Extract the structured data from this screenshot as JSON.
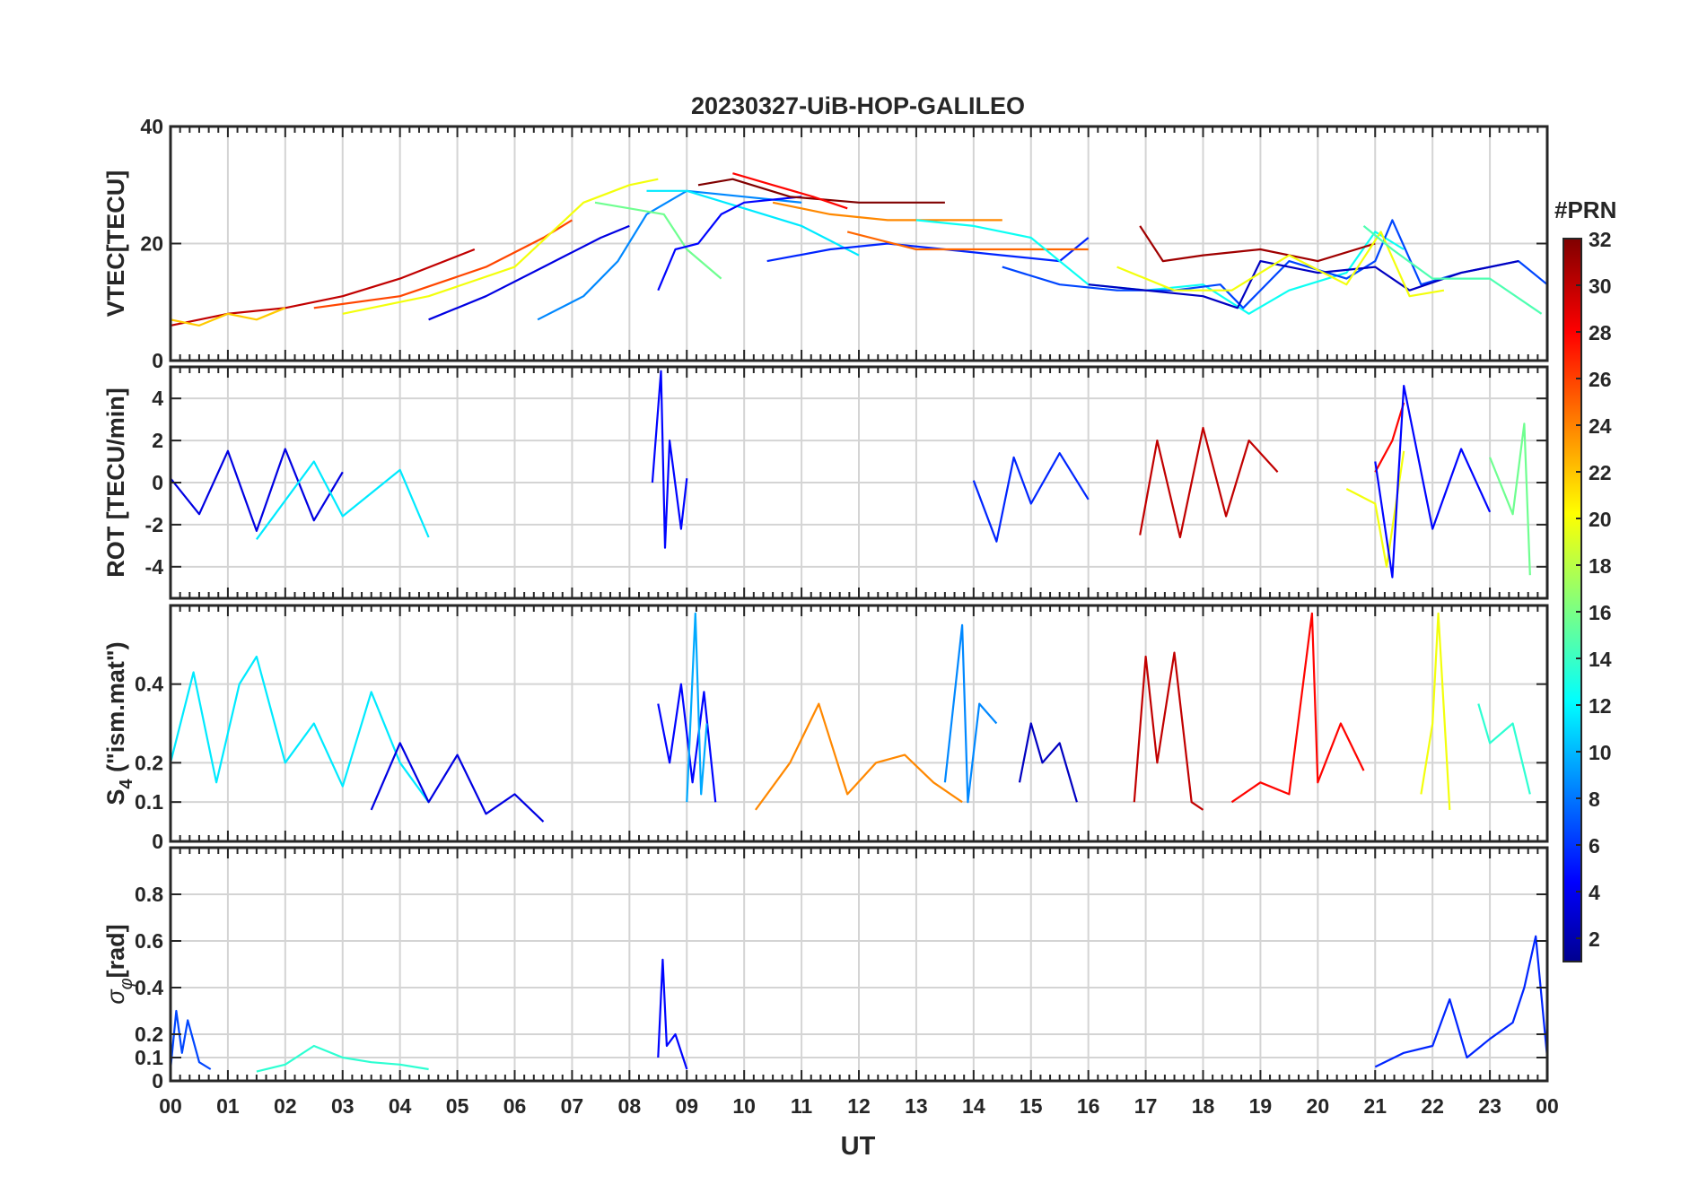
{
  "chart_data": {
    "type": "line",
    "title": "20230327-UiB-HOP-GALILEO",
    "xlabel": "UT",
    "x_range_hours": [
      0,
      24
    ],
    "x_ticks": [
      "00",
      "01",
      "02",
      "03",
      "04",
      "05",
      "06",
      "07",
      "08",
      "09",
      "10",
      "11",
      "12",
      "13",
      "14",
      "15",
      "16",
      "17",
      "18",
      "19",
      "20",
      "21",
      "22",
      "23",
      "00"
    ],
    "colorbar": {
      "title": "#PRN",
      "range": [
        1,
        32
      ],
      "ticks": [
        "2",
        "4",
        "6",
        "8",
        "10",
        "12",
        "14",
        "16",
        "18",
        "20",
        "22",
        "24",
        "26",
        "28",
        "30",
        "32"
      ],
      "colormap": "jet"
    },
    "panels": [
      {
        "id": "vtec",
        "ylabel": "VTEC[TECU]",
        "ylim": [
          0,
          40
        ],
        "y_ticks": [
          "0",
          "20",
          "40"
        ],
        "y_tick_values": [
          0,
          20,
          40
        ],
        "series": [
          {
            "prn": 30,
            "x": [
              0.0,
              1.0,
              2.0,
              3.0,
              4.0,
              5.3
            ],
            "y": [
              6,
              8,
              9,
              11,
              14,
              19
            ]
          },
          {
            "prn": 26,
            "x": [
              2.5,
              4.0,
              5.5,
              6.5,
              7.0
            ],
            "y": [
              9,
              11,
              16,
              21,
              24
            ]
          },
          {
            "prn": 20,
            "x": [
              3.0,
              4.5,
              6.0,
              7.2,
              8.0,
              8.5
            ],
            "y": [
              8,
              11,
              16,
              27,
              30,
              31
            ]
          },
          {
            "prn": 22,
            "x": [
              0.0,
              0.5,
              1.0,
              1.5,
              2.0
            ],
            "y": [
              7,
              6,
              8,
              7,
              9
            ]
          },
          {
            "prn": 4,
            "x": [
              4.5,
              5.5,
              6.5,
              7.5,
              8.0
            ],
            "y": [
              7,
              11,
              16,
              21,
              23
            ]
          },
          {
            "prn": 9,
            "x": [
              6.4,
              7.2,
              7.8,
              8.3,
              9.0,
              10.0,
              11.0
            ],
            "y": [
              7,
              11,
              17,
              25,
              29,
              28,
              27
            ]
          },
          {
            "prn": 12,
            "x": [
              8.3,
              9.0,
              10.0,
              11.0,
              12.0
            ],
            "y": [
              29,
              29,
              26,
              23,
              18
            ]
          },
          {
            "prn": 16,
            "x": [
              7.4,
              8.0,
              8.6,
              9.0,
              9.6
            ],
            "y": [
              27,
              26,
              25,
              19,
              14
            ]
          },
          {
            "prn": 5,
            "x": [
              8.5,
              8.8,
              9.2,
              9.6,
              10.0,
              11.0
            ],
            "y": [
              12,
              19,
              20,
              25,
              27,
              28
            ]
          },
          {
            "prn": 32,
            "x": [
              9.2,
              9.8,
              10.8,
              12.0,
              13.5
            ],
            "y": [
              30,
              31,
              28,
              27,
              27
            ]
          },
          {
            "prn": 28,
            "x": [
              9.8,
              10.5,
              11.2,
              11.8
            ],
            "y": [
              32,
              30,
              28,
              26
            ]
          },
          {
            "prn": 24,
            "x": [
              10.5,
              11.5,
              12.5,
              13.5,
              14.5
            ],
            "y": [
              27,
              25,
              24,
              24,
              24
            ]
          },
          {
            "prn": 6,
            "x": [
              10.4,
              11.5,
              12.5,
              13.5,
              14.5,
              15.5,
              16.0
            ],
            "y": [
              17,
              19,
              20,
              19,
              18,
              17,
              21
            ]
          },
          {
            "prn": 25,
            "x": [
              11.8,
              13.0,
              14.0,
              15.0,
              16.0
            ],
            "y": [
              22,
              19,
              19,
              19,
              19
            ]
          },
          {
            "prn": 13,
            "x": [
              13.0,
              14.0,
              15.0,
              16.0,
              17.0,
              18.0,
              18.8,
              19.5,
              20.5,
              21.0,
              21.5
            ],
            "y": [
              24,
              23,
              21,
              13,
              12,
              13,
              8,
              12,
              15,
              22,
              19
            ]
          },
          {
            "prn": 7,
            "x": [
              14.5,
              15.5,
              16.5,
              17.5,
              18.3,
              18.7,
              19.5,
              20.5,
              21.0,
              21.3,
              21.8,
              22.5,
              23.5,
              24.0
            ],
            "y": [
              16,
              13,
              12,
              12,
              13,
              9,
              17,
              14,
              17,
              24,
              13,
              15,
              17,
              13
            ]
          },
          {
            "prn": 3,
            "x": [
              16.0,
              17.0,
              18.0,
              18.6,
              19.0,
              20.0,
              21.0,
              21.6,
              22.5,
              23.5
            ],
            "y": [
              13,
              12,
              11,
              9,
              17,
              15,
              16,
              12,
              15,
              17
            ]
          },
          {
            "prn": 31,
            "x": [
              16.9,
              17.3,
              18.0,
              19.0,
              20.0,
              21.0
            ],
            "y": [
              23,
              17,
              18,
              19,
              17,
              20
            ]
          },
          {
            "prn": 20,
            "x": [
              16.5,
              17.5,
              18.5,
              19.5,
              20.5,
              21.1,
              21.6,
              22.2
            ],
            "y": [
              16,
              12,
              12,
              18,
              13,
              22,
              11,
              12
            ]
          },
          {
            "prn": 15,
            "x": [
              20.8,
              21.3,
              22.0,
              23.0,
              23.9
            ],
            "y": [
              23,
              19,
              14,
              14,
              8
            ]
          }
        ]
      },
      {
        "id": "rot",
        "ylabel": "ROT [TECU/min]",
        "ylim": [
          -5.5,
          5.5
        ],
        "y_ticks": [
          "-4",
          "-2",
          "0",
          "2",
          "4"
        ],
        "y_tick_values": [
          -4,
          -2,
          0,
          2,
          4
        ],
        "series": [
          {
            "prn": 4,
            "x": [
              0.0,
              0.5,
              1.0,
              1.5,
              2.0,
              2.5,
              3.0
            ],
            "y": [
              0.2,
              -1.5,
              1.5,
              -2.3,
              1.6,
              -1.8,
              0.5
            ]
          },
          {
            "prn": 12,
            "x": [
              1.5,
              2.5,
              3.0,
              4.0,
              4.5
            ],
            "y": [
              -2.7,
              1.0,
              -1.6,
              0.6,
              -2.6
            ]
          },
          {
            "prn": 5,
            "x": [
              8.4,
              8.55,
              8.62,
              8.7,
              8.9,
              9.0
            ],
            "y": [
              0.0,
              5.3,
              -3.1,
              2.0,
              -2.2,
              0.2
            ]
          },
          {
            "prn": 6,
            "x": [
              14.0,
              14.4,
              14.7,
              15.0,
              15.5,
              16.0
            ],
            "y": [
              0.1,
              -2.8,
              1.2,
              -1.0,
              1.4,
              -0.8
            ]
          },
          {
            "prn": 30,
            "x": [
              16.9,
              17.2,
              17.6,
              18.0,
              18.4,
              18.8,
              19.3
            ],
            "y": [
              -2.5,
              2.0,
              -2.6,
              2.6,
              -1.6,
              2.0,
              0.5
            ]
          },
          {
            "prn": 28,
            "x": [
              21.0,
              21.3,
              21.5
            ],
            "y": [
              0.5,
              2.0,
              3.8
            ]
          },
          {
            "prn": 20,
            "x": [
              20.5,
              21.0,
              21.2,
              21.5
            ],
            "y": [
              -0.3,
              -1.0,
              -4.0,
              1.5
            ]
          },
          {
            "prn": 5,
            "x": [
              21.0,
              21.3,
              21.5,
              22.0,
              22.5,
              23.0
            ],
            "y": [
              1.0,
              -4.5,
              4.6,
              -2.2,
              1.6,
              -1.4
            ]
          },
          {
            "prn": 16,
            "x": [
              23.0,
              23.4,
              23.6,
              23.7
            ],
            "y": [
              1.2,
              -1.5,
              2.8,
              -4.4
            ]
          }
        ]
      },
      {
        "id": "s4",
        "ylabel_main": "S",
        "ylabel_sub": "4",
        "ylabel_rest": " (\"ism.mat\")",
        "ylim": [
          0,
          0.6
        ],
        "y_ticks": [
          "0",
          "0.1",
          "0.2",
          "0.4"
        ],
        "y_tick_values": [
          0,
          0.1,
          0.2,
          0.4
        ],
        "series": [
          {
            "prn": 12,
            "x": [
              0.0,
              0.4,
              0.8,
              1.2,
              1.5,
              2.0,
              2.5,
              3.0,
              3.5,
              4.0,
              4.5
            ],
            "y": [
              0.2,
              0.43,
              0.15,
              0.4,
              0.47,
              0.2,
              0.3,
              0.14,
              0.38,
              0.2,
              0.1
            ]
          },
          {
            "prn": 4,
            "x": [
              3.5,
              4.0,
              4.5,
              5.0,
              5.5,
              6.0,
              6.5
            ],
            "y": [
              0.08,
              0.25,
              0.1,
              0.22,
              0.07,
              0.12,
              0.05
            ]
          },
          {
            "prn": 5,
            "x": [
              8.5,
              8.7,
              8.9,
              9.1,
              9.3,
              9.5
            ],
            "y": [
              0.35,
              0.2,
              0.4,
              0.15,
              0.38,
              0.1
            ]
          },
          {
            "prn": 10,
            "x": [
              9.0,
              9.15,
              9.25,
              9.35
            ],
            "y": [
              0.1,
              0.58,
              0.12,
              0.3
            ]
          },
          {
            "prn": 24,
            "x": [
              10.2,
              10.8,
              11.3,
              11.8,
              12.3,
              12.8,
              13.3,
              13.8
            ],
            "y": [
              0.08,
              0.2,
              0.35,
              0.12,
              0.2,
              0.22,
              0.15,
              0.1
            ]
          },
          {
            "prn": 9,
            "x": [
              13.5,
              13.8,
              13.9,
              14.1,
              14.4
            ],
            "y": [
              0.15,
              0.55,
              0.1,
              0.35,
              0.3
            ]
          },
          {
            "prn": 3,
            "x": [
              14.8,
              15.0,
              15.2,
              15.5,
              15.8
            ],
            "y": [
              0.15,
              0.3,
              0.2,
              0.25,
              0.1
            ]
          },
          {
            "prn": 30,
            "x": [
              16.8,
              17.0,
              17.2,
              17.5,
              17.8,
              18.0
            ],
            "y": [
              0.1,
              0.47,
              0.2,
              0.48,
              0.1,
              0.08
            ]
          },
          {
            "prn": 28,
            "x": [
              18.5,
              19.0,
              19.5,
              19.9,
              20.0,
              20.4,
              20.8
            ],
            "y": [
              0.1,
              0.15,
              0.12,
              0.58,
              0.15,
              0.3,
              0.18
            ]
          },
          {
            "prn": 20,
            "x": [
              21.8,
              22.0,
              22.1,
              22.3
            ],
            "y": [
              0.12,
              0.3,
              0.58,
              0.08
            ]
          },
          {
            "prn": 14,
            "x": [
              22.8,
              23.0,
              23.4,
              23.7
            ],
            "y": [
              0.35,
              0.25,
              0.3,
              0.12
            ]
          }
        ]
      },
      {
        "id": "sigphi",
        "ylabel_main": "σ",
        "ylabel_sub": "φ",
        "ylabel_rest": "[rad]",
        "ylim": [
          0,
          1.0
        ],
        "y_ticks": [
          "0",
          "0.1",
          "0.2",
          "0.4",
          "0.6",
          "0.8"
        ],
        "y_tick_values": [
          0,
          0.1,
          0.2,
          0.4,
          0.6,
          0.8
        ],
        "series": [
          {
            "prn": 7,
            "x": [
              0.0,
              0.1,
              0.2,
              0.3,
              0.5,
              0.7
            ],
            "y": [
              0.05,
              0.3,
              0.12,
              0.26,
              0.08,
              0.05
            ]
          },
          {
            "prn": 14,
            "x": [
              1.5,
              2.0,
              2.5,
              3.0,
              3.5,
              4.0,
              4.5
            ],
            "y": [
              0.04,
              0.07,
              0.15,
              0.1,
              0.08,
              0.07,
              0.05
            ]
          },
          {
            "prn": 5,
            "x": [
              8.5,
              8.58,
              8.65,
              8.8,
              9.0
            ],
            "y": [
              0.1,
              0.52,
              0.15,
              0.2,
              0.05
            ]
          },
          {
            "prn": 6,
            "x": [
              21.0,
              21.5,
              22.0,
              22.3,
              22.6,
              23.0,
              23.4,
              23.6,
              23.8,
              24.0
            ],
            "y": [
              0.06,
              0.12,
              0.15,
              0.35,
              0.1,
              0.18,
              0.25,
              0.4,
              0.62,
              0.1
            ]
          }
        ]
      }
    ]
  }
}
